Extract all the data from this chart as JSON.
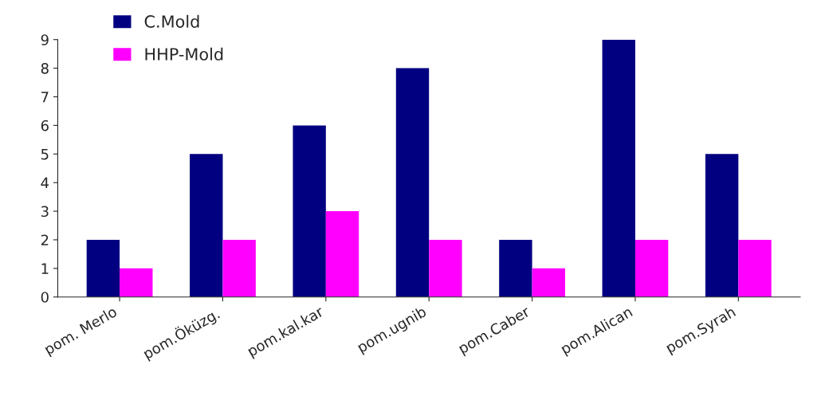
{
  "chart_data": {
    "type": "bar",
    "categories": [
      "pom. Merlo",
      "pom.Öküzg.",
      "pom.kal.kar",
      "pom.ugnib",
      "pom.Caber",
      "pom.Alican",
      "pom.Syrah"
    ],
    "series": [
      {
        "name": "C.Mold",
        "color": "#000080",
        "values": [
          2,
          5,
          6,
          8,
          2,
          9,
          5
        ]
      },
      {
        "name": "HHP-Mold",
        "color": "#ff00ff",
        "values": [
          1,
          2,
          3,
          2,
          1,
          2,
          2
        ]
      }
    ],
    "ylim": [
      0,
      9
    ],
    "yticks": [
      0,
      1,
      2,
      3,
      4,
      5,
      6,
      7,
      8,
      9
    ],
    "grid": false,
    "legend": "top left"
  }
}
